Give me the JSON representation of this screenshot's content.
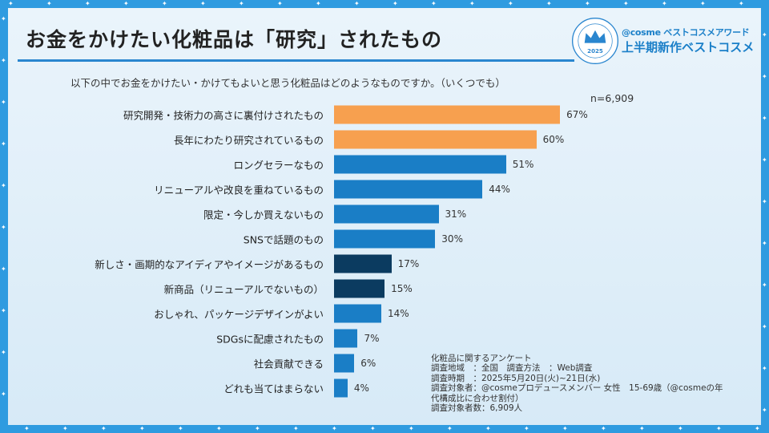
{
  "title": "お金をかけたい化粧品は「研究」されたもの",
  "brand": {
    "line1": "@cosme ベストコスメアワード",
    "line2": "上半期新作ベストコスメ",
    "logo_year": "2025",
    "logo_text": "THE BEST COSMETICS AWARDS"
  },
  "question": "以下の中でお金をかけたい・かけてもよいと思う化粧品はどのようなものですか。（いくつでも）",
  "sample": "n=6,909",
  "colors": {
    "orange": "#f7a04f",
    "blue": "#1a7ec6",
    "navy": "#0b3b60",
    "frame": "#2f9be0"
  },
  "chart_data": {
    "type": "bar",
    "orientation": "horizontal",
    "unit": "%",
    "categories": [
      "研究開発・技術力の高さに裏付けされたもの",
      "長年にわたり研究されているもの",
      "ロングセラーなもの",
      "リニューアルや改良を重ねているもの",
      "限定・今しか買えないもの",
      "SNSで話題のもの",
      "新しさ・画期的なアイディアやイメージがあるもの",
      "新商品（リニューアルでないもの）",
      "おしゃれ、パッケージデザインがよい",
      "SDGsに配慮されたもの",
      "社会貢献できる",
      "どれも当てはまらない"
    ],
    "values": [
      67,
      60,
      51,
      44,
      31,
      30,
      17,
      15,
      14,
      7,
      6,
      4
    ],
    "value_labels": [
      "67%",
      "60%",
      "51%",
      "44%",
      "31%",
      "30%",
      "17%",
      "15%",
      "14%",
      "7%",
      "6%",
      "4%"
    ],
    "bar_colors": [
      "orange",
      "orange",
      "blue",
      "blue",
      "blue",
      "blue",
      "navy",
      "navy",
      "blue",
      "blue",
      "blue",
      "blue"
    ]
  },
  "note": [
    "化粧品に関するアンケート",
    "調査地域　：全国　調査方法　：Web調査",
    "調査時期　：2025年5月20日(火)~21日(水)",
    "調査対象者：@cosmeプロデュースメンバー 女性　15-69歳（@cosmeの年",
    "代構成比に合わせ割付）",
    "調査対象者数：6,909人"
  ]
}
